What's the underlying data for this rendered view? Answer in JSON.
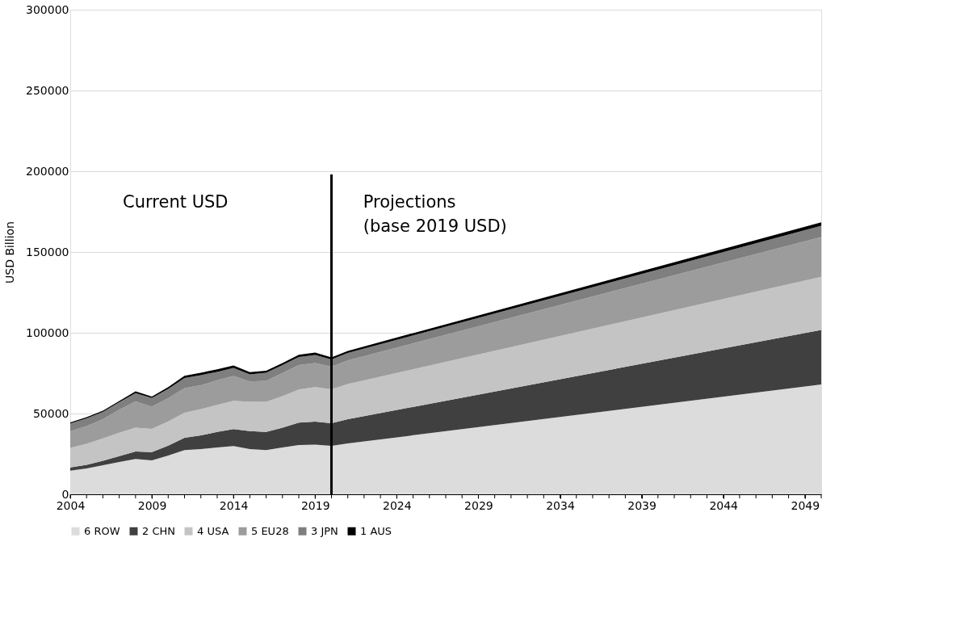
{
  "chart_data": {
    "type": "area",
    "stacked": true,
    "x": [
      2004,
      2005,
      2006,
      2007,
      2008,
      2009,
      2010,
      2011,
      2012,
      2013,
      2014,
      2015,
      2016,
      2017,
      2018,
      2019,
      2020,
      2021,
      2050
    ],
    "ylabel": "USD  Billion",
    "xlim": [
      2004,
      2050
    ],
    "xticks": [
      2004,
      2009,
      2014,
      2019,
      2024,
      2029,
      2034,
      2039,
      2044,
      2049
    ],
    "ylim": [
      0,
      300000
    ],
    "yticks": [
      0,
      50000,
      100000,
      150000,
      200000,
      250000,
      300000
    ],
    "grid": "y",
    "legend": "bottom",
    "ref_lines": [
      {
        "axis": "x",
        "value": 2020,
        "color": "#000000"
      }
    ],
    "annotations": [
      "Current USD",
      "Projections\n(base 2019 USD)"
    ],
    "series": [
      {
        "name": "6 ROW",
        "color": "#dcdcdc",
        "values": [
          14600,
          16000,
          18000,
          20000,
          21900,
          21000,
          24000,
          27400,
          28000,
          29000,
          29900,
          28000,
          27400,
          29000,
          30500,
          30700,
          30000,
          31500,
          68000
        ]
      },
      {
        "name": "2 CHN",
        "color": "#404040",
        "values": [
          2000,
          2300,
          2800,
          3600,
          4600,
          5100,
          6100,
          7600,
          8500,
          9600,
          10500,
          11100,
          11200,
          12300,
          13900,
          14300,
          14000,
          15000,
          33800
        ]
      },
      {
        "name": "4 USA",
        "color": "#c4c4c4",
        "values": [
          12200,
          13000,
          13800,
          14500,
          14700,
          14400,
          15000,
          15500,
          16200,
          16800,
          17500,
          18200,
          18700,
          19500,
          20500,
          21400,
          21000,
          21800,
          32800
        ]
      },
      {
        "name": "5 EU28",
        "color": "#9c9c9c",
        "values": [
          10200,
          10900,
          11900,
          14300,
          16300,
          13800,
          14400,
          15300,
          14800,
          15200,
          15400,
          12600,
          13000,
          14300,
          15100,
          14800,
          14000,
          14600,
          24700
        ]
      },
      {
        "name": "3 JPN",
        "color": "#7f7f7f",
        "values": [
          4900,
          4800,
          4500,
          4600,
          5100,
          5300,
          5800,
          6200,
          6300,
          5200,
          4900,
          4400,
          5000,
          4900,
          5000,
          5100,
          4500,
          4600,
          6900
        ]
      },
      {
        "name": "1 AUS",
        "color": "#000000",
        "values": [
          600,
          700,
          800,
          800,
          1100,
          900,
          1100,
          1400,
          1500,
          1600,
          1500,
          1300,
          1200,
          1300,
          1400,
          1400,
          1300,
          1300,
          2200
        ]
      }
    ]
  }
}
